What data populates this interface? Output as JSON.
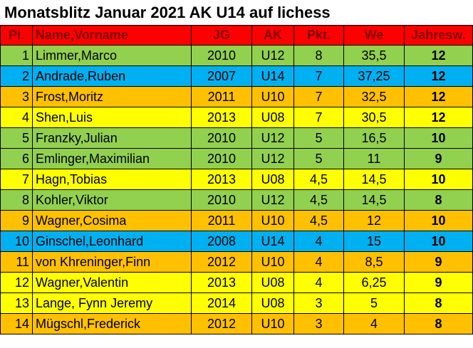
{
  "header": {
    "title": "Monatsblitz Januar 2021 AK U14 auf lichess"
  },
  "table": {
    "columns": [
      "Pl.",
      "Name,Vorname",
      "JG",
      "AK",
      "Pkt.",
      "We",
      "Jahresw."
    ],
    "header_color": "#ff0000",
    "rows": [
      [
        "1",
        "Limmer,Marco",
        "2010",
        "U12",
        "8",
        "35,5",
        "12"
      ],
      [
        "2",
        "Andrade,Ruben",
        "2007",
        "U14",
        "7",
        "37,25",
        "12"
      ],
      [
        "3",
        "Frost,Moritz",
        "2011",
        "U10",
        "7",
        "32,5",
        "12"
      ],
      [
        "4",
        "Shen,Luis",
        "2013",
        "U08",
        "7",
        "30,5",
        "12"
      ],
      [
        "5",
        "Franzky,Julian",
        "2010",
        "U12",
        "5",
        "16,5",
        "10"
      ],
      [
        "6",
        "Emlinger,Maximilian",
        "2010",
        "U12",
        "5",
        "11",
        "9"
      ],
      [
        "7",
        "Hagn,Tobias",
        "2013",
        "U08",
        "4,5",
        "14,5",
        "10"
      ],
      [
        "8",
        "Kohler,Viktor",
        "2010",
        "U12",
        "4,5",
        "14,5",
        "8"
      ],
      [
        "9",
        "Wagner,Cosima",
        "2011",
        "U10",
        "4,5",
        "12",
        "10"
      ],
      [
        "10",
        "Ginschel,Leonhard",
        "2008",
        "U14",
        "4",
        "15",
        "10"
      ],
      [
        "11",
        "von Khreninger,Finn",
        "2012",
        "U10",
        "4",
        "8,5",
        "9"
      ],
      [
        "12",
        "Wagner,Valentin",
        "2013",
        "U08",
        "4",
        "6,25",
        "9"
      ],
      [
        "13",
        "Lange, Fynn Jeremy",
        "2014",
        "U08",
        "3",
        "5",
        "8"
      ],
      [
        "14",
        "Mügschl,Frederick",
        "2012",
        "U10",
        "3",
        "4",
        "8"
      ]
    ],
    "row_colors": [
      "#92d050",
      "#00b0f0",
      "#ffc000",
      "#ffff00",
      "#92d050",
      "#92d050",
      "#ffff00",
      "#92d050",
      "#ffc000",
      "#00b0f0",
      "#ffc000",
      "#ffff00",
      "#ffff00",
      "#ffc000"
    ]
  }
}
